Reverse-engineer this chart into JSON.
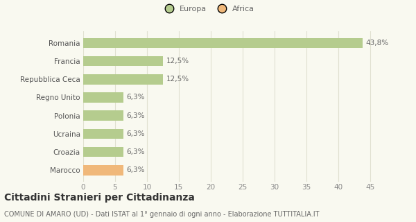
{
  "categories": [
    "Marocco",
    "Croazia",
    "Ucraina",
    "Polonia",
    "Regno Unito",
    "Repubblica Ceca",
    "Francia",
    "Romania"
  ],
  "values": [
    6.3,
    6.3,
    6.3,
    6.3,
    6.3,
    12.5,
    12.5,
    43.8
  ],
  "labels": [
    "6,3%",
    "6,3%",
    "6,3%",
    "6,3%",
    "6,3%",
    "12,5%",
    "12,5%",
    "43,8%"
  ],
  "colors": [
    "#f0b87a",
    "#b5cc8e",
    "#b5cc8e",
    "#b5cc8e",
    "#b5cc8e",
    "#b5cc8e",
    "#b5cc8e",
    "#b5cc8e"
  ],
  "legend": [
    {
      "label": "Europa",
      "color": "#b5cc8e"
    },
    {
      "label": "Africa",
      "color": "#f0b87a"
    }
  ],
  "xlim": [
    0,
    47
  ],
  "xticks": [
    0,
    5,
    10,
    15,
    20,
    25,
    30,
    35,
    40,
    45
  ],
  "title": "Cittadini Stranieri per Cittadinanza",
  "subtitle": "COMUNE DI AMARO (UD) - Dati ISTAT al 1° gennaio di ogni anno - Elaborazione TUTTITALIA.IT",
  "background_color": "#f9f9f0",
  "grid_color": "#e0e0d0",
  "bar_height": 0.55,
  "label_fontsize": 7.5,
  "title_fontsize": 10,
  "subtitle_fontsize": 7,
  "ytick_fontsize": 7.5,
  "xtick_fontsize": 7.5
}
